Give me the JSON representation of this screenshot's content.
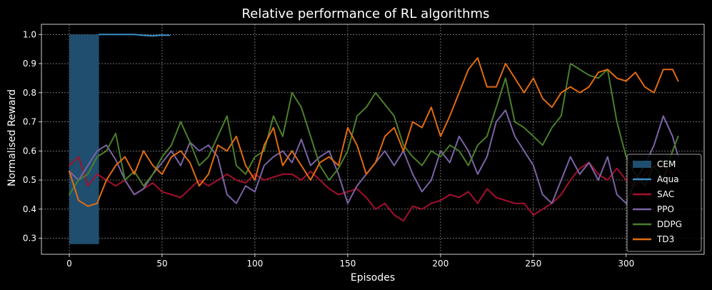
{
  "chart_data": {
    "type": "line",
    "title": "Relative performance of RL algorithms",
    "xlabel": "Episodes",
    "ylabel": "Normalised Reward",
    "xlim": [
      -15,
      342
    ],
    "ylim": [
      0.245,
      1.035
    ],
    "xticks": [
      0,
      50,
      100,
      150,
      200,
      250,
      300
    ],
    "yticks": [
      0.3,
      0.4,
      0.5,
      0.6,
      0.7,
      0.8,
      0.9,
      1.0
    ],
    "grid": true,
    "legend_position": "lower-right",
    "bars": [
      {
        "name": "CEM",
        "x_start": 0,
        "x_end": 16,
        "y_bottom": 0.28,
        "y_top": 1.0,
        "color": "#1f4e6e"
      }
    ],
    "series": [
      {
        "name": "Aqua",
        "color": "#3b8ec6",
        "x": [
          16,
          20,
          25,
          30,
          35,
          40,
          45,
          50,
          54
        ],
        "y": [
          1.0,
          1.0,
          1.0,
          1.0,
          1.0,
          0.997,
          0.995,
          0.998,
          0.997
        ]
      },
      {
        "name": "SAC",
        "color": "#a50f2d",
        "x": [
          0,
          5,
          10,
          15,
          20,
          25,
          30,
          35,
          40,
          45,
          50,
          55,
          60,
          65,
          70,
          75,
          80,
          85,
          90,
          95,
          100,
          105,
          110,
          115,
          120,
          125,
          130,
          135,
          140,
          145,
          150,
          155,
          160,
          165,
          170,
          175,
          180,
          185,
          190,
          195,
          200,
          205,
          210,
          215,
          220,
          225,
          230,
          235,
          240,
          245,
          250,
          255,
          260,
          265,
          270,
          275,
          280,
          285,
          290,
          295,
          300,
          305,
          310,
          315,
          320,
          325,
          328
        ],
        "y": [
          0.55,
          0.58,
          0.48,
          0.52,
          0.5,
          0.48,
          0.5,
          0.45,
          0.47,
          0.49,
          0.46,
          0.45,
          0.44,
          0.47,
          0.5,
          0.48,
          0.5,
          0.52,
          0.5,
          0.49,
          0.52,
          0.5,
          0.51,
          0.52,
          0.52,
          0.5,
          0.53,
          0.5,
          0.47,
          0.45,
          0.46,
          0.47,
          0.44,
          0.4,
          0.42,
          0.38,
          0.36,
          0.41,
          0.4,
          0.42,
          0.43,
          0.45,
          0.44,
          0.46,
          0.42,
          0.47,
          0.44,
          0.43,
          0.42,
          0.42,
          0.38,
          0.4,
          0.42,
          0.45,
          0.5,
          0.54,
          0.56,
          0.52,
          0.5,
          0.54,
          0.5,
          0.48,
          0.52,
          0.55,
          0.55,
          0.52,
          0.5
        ]
      },
      {
        "name": "PPO",
        "color": "#7b63a6",
        "x": [
          0,
          5,
          10,
          15,
          20,
          25,
          30,
          35,
          40,
          45,
          50,
          55,
          60,
          65,
          70,
          75,
          80,
          85,
          90,
          95,
          100,
          105,
          110,
          115,
          120,
          125,
          130,
          135,
          140,
          145,
          150,
          155,
          160,
          165,
          170,
          175,
          180,
          185,
          190,
          195,
          200,
          205,
          210,
          215,
          220,
          225,
          230,
          235,
          240,
          245,
          250,
          255,
          260,
          265,
          270,
          275,
          280,
          285,
          290,
          295,
          300,
          305,
          310,
          315,
          320,
          325,
          328
        ],
        "y": [
          0.53,
          0.5,
          0.55,
          0.6,
          0.62,
          0.57,
          0.5,
          0.45,
          0.47,
          0.52,
          0.56,
          0.6,
          0.55,
          0.63,
          0.6,
          0.62,
          0.58,
          0.45,
          0.42,
          0.48,
          0.46,
          0.55,
          0.58,
          0.6,
          0.56,
          0.64,
          0.55,
          0.58,
          0.6,
          0.52,
          0.42,
          0.48,
          0.52,
          0.56,
          0.6,
          0.55,
          0.6,
          0.52,
          0.46,
          0.5,
          0.6,
          0.56,
          0.65,
          0.6,
          0.52,
          0.58,
          0.7,
          0.74,
          0.65,
          0.6,
          0.55,
          0.45,
          0.42,
          0.5,
          0.58,
          0.52,
          0.56,
          0.5,
          0.58,
          0.45,
          0.42,
          0.5,
          0.55,
          0.62,
          0.72,
          0.65,
          0.58
        ]
      },
      {
        "name": "DDPG",
        "color": "#4b7f2a",
        "x": [
          0,
          5,
          10,
          15,
          20,
          25,
          30,
          35,
          40,
          45,
          50,
          55,
          60,
          65,
          70,
          75,
          80,
          85,
          90,
          95,
          100,
          105,
          110,
          115,
          120,
          125,
          130,
          135,
          140,
          145,
          150,
          155,
          160,
          165,
          170,
          175,
          180,
          185,
          190,
          195,
          200,
          205,
          210,
          215,
          220,
          225,
          230,
          235,
          240,
          245,
          250,
          255,
          260,
          265,
          270,
          275,
          280,
          285,
          290,
          295,
          300,
          305,
          310,
          315,
          320,
          325,
          328
        ],
        "y": [
          0.45,
          0.5,
          0.52,
          0.58,
          0.6,
          0.66,
          0.5,
          0.53,
          0.48,
          0.52,
          0.58,
          0.62,
          0.7,
          0.63,
          0.55,
          0.58,
          0.65,
          0.72,
          0.55,
          0.52,
          0.58,
          0.6,
          0.72,
          0.65,
          0.8,
          0.75,
          0.65,
          0.55,
          0.5,
          0.54,
          0.6,
          0.72,
          0.75,
          0.8,
          0.76,
          0.72,
          0.62,
          0.58,
          0.55,
          0.6,
          0.58,
          0.62,
          0.6,
          0.55,
          0.62,
          0.65,
          0.75,
          0.85,
          0.7,
          0.68,
          0.65,
          0.62,
          0.68,
          0.72,
          0.9,
          0.88,
          0.86,
          0.85,
          0.88,
          0.7,
          0.58,
          0.52,
          0.48,
          0.55,
          0.5,
          0.6,
          0.65
        ]
      },
      {
        "name": "TD3",
        "color": "#e06b12",
        "x": [
          0,
          5,
          10,
          15,
          20,
          25,
          30,
          35,
          40,
          45,
          50,
          55,
          60,
          65,
          70,
          75,
          80,
          85,
          90,
          95,
          100,
          105,
          110,
          115,
          120,
          125,
          130,
          135,
          140,
          145,
          150,
          155,
          160,
          165,
          170,
          175,
          180,
          185,
          190,
          195,
          200,
          205,
          210,
          215,
          220,
          225,
          230,
          235,
          240,
          245,
          250,
          255,
          260,
          265,
          270,
          275,
          280,
          285,
          290,
          295,
          300,
          305,
          310,
          315,
          320,
          325,
          328
        ],
        "y": [
          0.53,
          0.43,
          0.41,
          0.42,
          0.5,
          0.55,
          0.58,
          0.52,
          0.6,
          0.55,
          0.52,
          0.58,
          0.6,
          0.56,
          0.48,
          0.52,
          0.62,
          0.6,
          0.65,
          0.55,
          0.5,
          0.62,
          0.68,
          0.55,
          0.6,
          0.55,
          0.5,
          0.56,
          0.58,
          0.55,
          0.68,
          0.62,
          0.52,
          0.56,
          0.65,
          0.68,
          0.6,
          0.7,
          0.68,
          0.75,
          0.65,
          0.72,
          0.8,
          0.88,
          0.92,
          0.82,
          0.82,
          0.9,
          0.85,
          0.8,
          0.85,
          0.78,
          0.75,
          0.8,
          0.82,
          0.8,
          0.82,
          0.87,
          0.88,
          0.85,
          0.84,
          0.87,
          0.82,
          0.8,
          0.88,
          0.88,
          0.84
        ]
      }
    ]
  }
}
